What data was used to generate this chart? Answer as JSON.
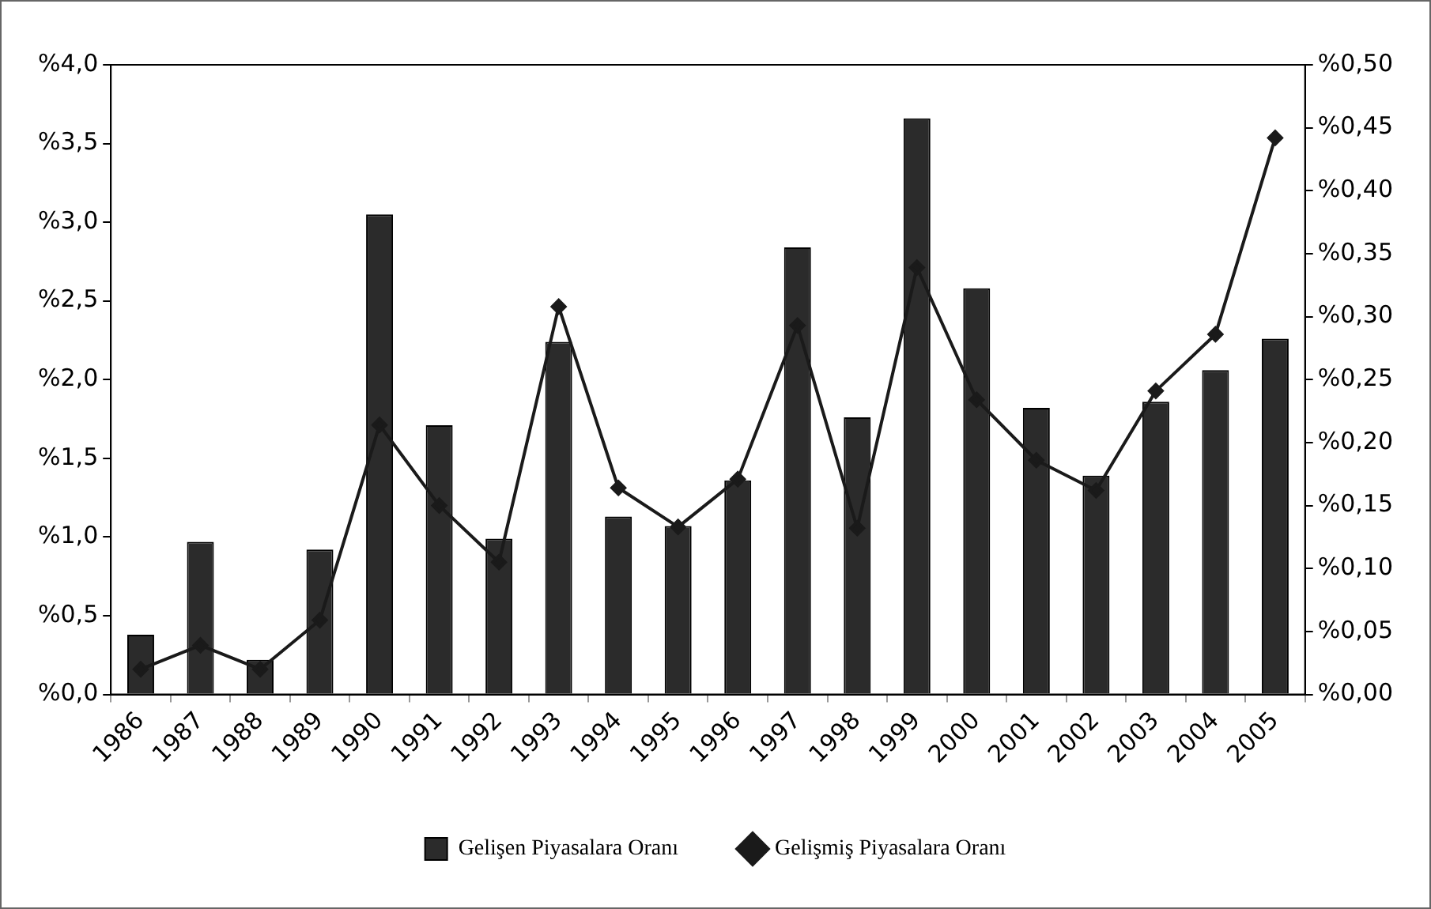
{
  "chart_data": {
    "type": "bar",
    "categories": [
      "1986",
      "1987",
      "1988",
      "1989",
      "1990",
      "1991",
      "1992",
      "1993",
      "1994",
      "1995",
      "1996",
      "1997",
      "1998",
      "1999",
      "2000",
      "2001",
      "2002",
      "2003",
      "2004",
      "2005"
    ],
    "series": [
      {
        "name": "Gelişen Piyasalara Oranı",
        "color": "#2b2b2b",
        "values": [
          0.38,
          0.97,
          0.22,
          0.92,
          3.05,
          1.71,
          0.99,
          2.24,
          1.13,
          1.07,
          1.36,
          2.84,
          1.76,
          3.66,
          2.58,
          1.82,
          1.39,
          1.86,
          2.06,
          2.26
        ]
      },
      {
        "name": "Gelişmiş Piyasalara Oranı",
        "type": "line",
        "axis": "y2",
        "color": "#1a1a1a",
        "marker": "diamond",
        "values": [
          0.02,
          0.039,
          0.02,
          0.059,
          0.214,
          0.15,
          0.105,
          0.308,
          0.164,
          0.133,
          0.171,
          0.293,
          0.132,
          0.339,
          0.234,
          0.186,
          0.162,
          0.241,
          0.286,
          0.442
        ]
      }
    ],
    "ylim": [
      0,
      4
    ],
    "yticks": [
      {
        "value": 0,
        "label": "%0,0"
      },
      {
        "value": 0.5,
        "label": "%0,5"
      },
      {
        "value": 1,
        "label": "%1,0"
      },
      {
        "value": 1.5,
        "label": "%1,5"
      },
      {
        "value": 2,
        "label": "%2,0"
      },
      {
        "value": 2.5,
        "label": "%2,5"
      },
      {
        "value": 3,
        "label": "%3,0"
      },
      {
        "value": 3.5,
        "label": "%3,5"
      },
      {
        "value": 4,
        "label": "%4,0"
      }
    ],
    "y2lim": [
      0,
      0.5
    ],
    "y2ticks": [
      {
        "value": 0,
        "label": "%0,00"
      },
      {
        "value": 0.05,
        "label": "%0,05"
      },
      {
        "value": 0.1,
        "label": "%0,10"
      },
      {
        "value": 0.15,
        "label": "%0,15"
      },
      {
        "value": 0.2,
        "label": "%0,20"
      },
      {
        "value": 0.25,
        "label": "%0,25"
      },
      {
        "value": 0.3,
        "label": "%0,30"
      },
      {
        "value": 0.35,
        "label": "%0,35"
      },
      {
        "value": 0.4,
        "label": "%0,40"
      },
      {
        "value": 0.45,
        "label": "%0,45"
      },
      {
        "value": 0.5,
        "label": "%0,50"
      }
    ],
    "legend": "bottom",
    "grid": false
  }
}
